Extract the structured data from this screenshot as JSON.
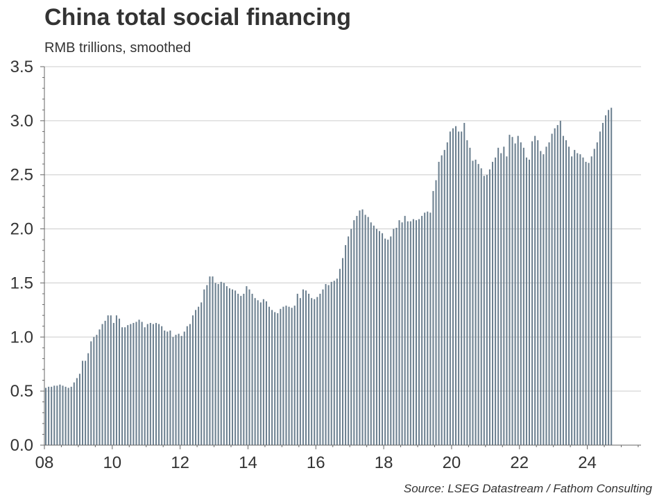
{
  "title": "China total social financing",
  "subtitle": "RMB trillions, smoothed",
  "source": "Source: LSEG Datastream / Fathom Consulting",
  "chart_data": {
    "type": "bar",
    "title": "China total social financing",
    "subtitle": "RMB trillions, smoothed",
    "xlabel": "",
    "ylabel": "",
    "ylim": [
      0,
      3.5
    ],
    "yticks": [
      "0.0",
      "0.5",
      "1.0",
      "1.5",
      "2.0",
      "2.5",
      "3.0",
      "3.5"
    ],
    "xticks": [
      "08",
      "10",
      "12",
      "14",
      "16",
      "18",
      "20",
      "22",
      "24"
    ],
    "xrange": [
      "2008-01",
      "2025-08"
    ],
    "grid": true,
    "bar_color": "#6b7f8f",
    "frequency": "monthly",
    "start": "2008-01",
    "values": [
      0.53,
      0.54,
      0.54,
      0.55,
      0.55,
      0.56,
      0.55,
      0.54,
      0.53,
      0.54,
      0.58,
      0.62,
      0.66,
      0.78,
      0.78,
      0.85,
      0.96,
      1.0,
      1.02,
      1.07,
      1.12,
      1.15,
      1.2,
      1.2,
      1.13,
      1.2,
      1.17,
      1.09,
      1.09,
      1.11,
      1.12,
      1.13,
      1.14,
      1.16,
      1.14,
      1.09,
      1.12,
      1.13,
      1.12,
      1.13,
      1.12,
      1.1,
      1.06,
      1.05,
      1.06,
      1.0,
      1.02,
      1.03,
      1.01,
      1.05,
      1.1,
      1.12,
      1.2,
      1.25,
      1.28,
      1.32,
      1.44,
      1.48,
      1.56,
      1.56,
      1.5,
      1.49,
      1.51,
      1.5,
      1.47,
      1.45,
      1.44,
      1.43,
      1.4,
      1.38,
      1.4,
      1.47,
      1.44,
      1.4,
      1.36,
      1.34,
      1.32,
      1.35,
      1.33,
      1.28,
      1.25,
      1.23,
      1.22,
      1.26,
      1.28,
      1.29,
      1.28,
      1.27,
      1.29,
      1.4,
      1.36,
      1.44,
      1.43,
      1.4,
      1.36,
      1.35,
      1.37,
      1.4,
      1.44,
      1.49,
      1.48,
      1.51,
      1.52,
      1.54,
      1.63,
      1.73,
      1.85,
      1.93,
      2.0,
      2.08,
      2.12,
      2.17,
      2.18,
      2.13,
      2.11,
      2.06,
      2.03,
      2.0,
      1.98,
      1.96,
      1.91,
      1.9,
      1.93,
      2.0,
      2.01,
      2.08,
      2.06,
      2.12,
      2.07,
      2.07,
      2.09,
      2.08,
      2.09,
      2.12,
      2.15,
      2.16,
      2.15,
      2.35,
      2.45,
      2.62,
      2.68,
      2.73,
      2.8,
      2.9,
      2.93,
      2.95,
      2.9,
      2.9,
      2.98,
      2.82,
      2.75,
      2.63,
      2.64,
      2.6,
      2.56,
      2.49,
      2.5,
      2.55,
      2.62,
      2.66,
      2.75,
      2.7,
      2.76,
      2.67,
      2.87,
      2.85,
      2.79,
      2.86,
      2.8,
      2.75,
      2.66,
      2.64,
      2.81,
      2.86,
      2.82,
      2.72,
      2.69,
      2.76,
      2.8,
      2.88,
      2.93,
      2.96,
      3.0,
      2.86,
      2.82,
      2.76,
      2.67,
      2.73,
      2.7,
      2.69,
      2.66,
      2.62,
      2.61,
      2.67,
      2.74,
      2.8,
      2.9,
      2.98,
      3.05,
      3.1,
      3.12
    ]
  }
}
